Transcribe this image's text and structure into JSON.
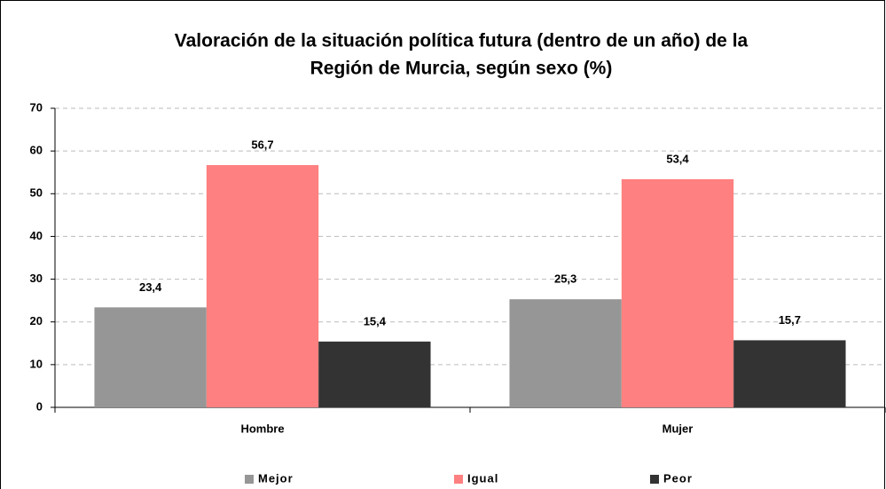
{
  "chart_data": {
    "type": "bar",
    "title": [
      "Valoración de la situación política futura (dentro de un año) de la",
      "Región de Murcia, según sexo (%)"
    ],
    "categories": [
      "Hombre",
      "Mujer"
    ],
    "series": [
      {
        "name": "Mejor",
        "color": "#969696",
        "values": [
          23.4,
          25.3
        ],
        "value_labels": [
          "23,4",
          "25,3"
        ]
      },
      {
        "name": "Igual",
        "color": "#ff8080",
        "values": [
          56.7,
          53.4
        ],
        "value_labels": [
          "56,7",
          "53,4"
        ]
      },
      {
        "name": "Peor",
        "color": "#333333",
        "values": [
          15.4,
          15.7
        ],
        "value_labels": [
          "15,4",
          "15,7"
        ]
      }
    ],
    "ylim": [
      0,
      70
    ],
    "yticks": [
      0,
      10,
      20,
      30,
      40,
      50,
      60,
      70
    ],
    "grid": true,
    "legend": "bottom"
  }
}
